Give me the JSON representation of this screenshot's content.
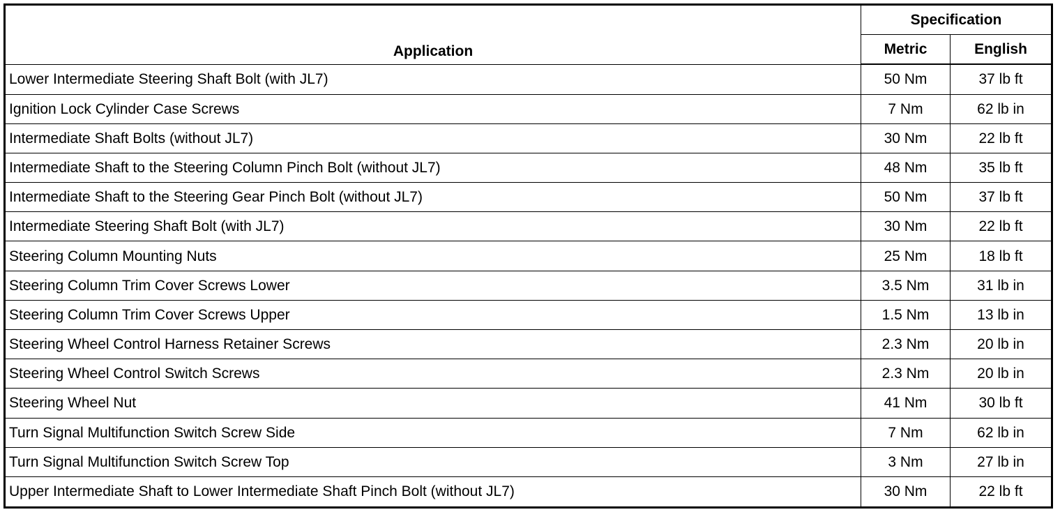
{
  "header": {
    "application": "Application",
    "specification": "Specification",
    "metric": "Metric",
    "english": "English"
  },
  "rows": [
    {
      "application": "Lower Intermediate Steering Shaft Bolt (with JL7)",
      "metric": "50 Nm",
      "english": "37 lb ft"
    },
    {
      "application": "Ignition Lock Cylinder Case Screws",
      "metric": "7 Nm",
      "english": "62 lb in"
    },
    {
      "application": "Intermediate Shaft Bolts (without JL7)",
      "metric": "30 Nm",
      "english": "22 lb ft"
    },
    {
      "application": "Intermediate Shaft to the Steering Column Pinch Bolt (without JL7)",
      "metric": "48 Nm",
      "english": "35 lb ft"
    },
    {
      "application": "Intermediate Shaft to the Steering Gear Pinch Bolt (without JL7)",
      "metric": "50 Nm",
      "english": "37 lb ft"
    },
    {
      "application": "Intermediate Steering Shaft Bolt (with JL7)",
      "metric": "30 Nm",
      "english": "22 lb ft"
    },
    {
      "application": "Steering Column Mounting Nuts",
      "metric": "25 Nm",
      "english": "18 lb ft"
    },
    {
      "application": "Steering Column Trim Cover Screws Lower",
      "metric": "3.5 Nm",
      "english": "31 lb in"
    },
    {
      "application": "Steering Column Trim Cover Screws Upper",
      "metric": "1.5 Nm",
      "english": "13 lb in"
    },
    {
      "application": "Steering Wheel Control Harness Retainer Screws",
      "metric": "2.3 Nm",
      "english": "20 lb in"
    },
    {
      "application": "Steering Wheel Control Switch Screws",
      "metric": "2.3 Nm",
      "english": "20 lb in"
    },
    {
      "application": "Steering Wheel Nut",
      "metric": "41 Nm",
      "english": "30 lb ft"
    },
    {
      "application": "Turn Signal Multifunction Switch Screw Side",
      "metric": "7 Nm",
      "english": "62 lb in"
    },
    {
      "application": "Turn Signal Multifunction Switch Screw Top",
      "metric": "3 Nm",
      "english": "27 lb in"
    },
    {
      "application": "Upper Intermediate Shaft to Lower Intermediate Shaft Pinch Bolt (without JL7)",
      "metric": "30 Nm",
      "english": "22 lb ft"
    }
  ]
}
